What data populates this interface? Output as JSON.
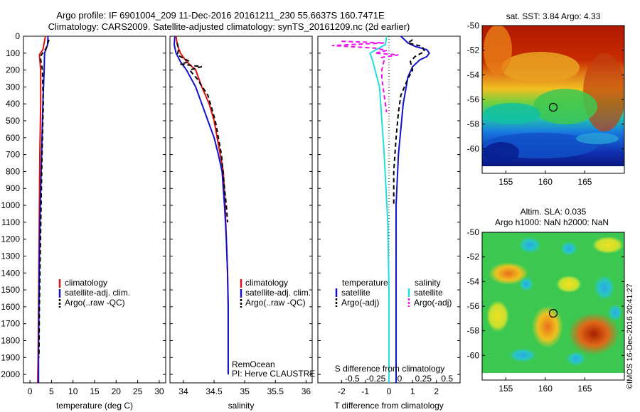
{
  "title_line1": "Argo profile: IF 6901004_209 11-Dec-2016 20161211_230 55.6637S 160.7471E",
  "title_line2": "Climatology: CARS2009. Satellite-adjusted climatology: synTS_20161209.nc (2d earlier)",
  "footer": "©IMOS 16-Dec-2016 20:41:27",
  "colors": {
    "climatology": "#dd1111",
    "satellite": "#1111cc",
    "argo": "#000000",
    "salinity_sat": "#22dddd",
    "salinity_argo": "#ee11ee"
  },
  "chart_data": [
    {
      "type": "line",
      "panel": "temperature",
      "xlabel": "temperature (deg C)",
      "xticks": [
        "0",
        "5",
        "10",
        "15",
        "20",
        "25",
        "30"
      ],
      "xlim": [
        -1.5,
        31.5
      ],
      "ylim": [
        2050,
        0
      ],
      "yticks": [
        "0",
        "100",
        "200",
        "300",
        "400",
        "500",
        "600",
        "700",
        "800",
        "900",
        "1000",
        "1100",
        "1200",
        "1300",
        "1400",
        "1500",
        "1600",
        "1700",
        "1800",
        "1900",
        "2000"
      ],
      "legend": [
        "climatology",
        "satellite-adj. clim.",
        "Argo(..raw -QC)"
      ],
      "series": [
        {
          "name": "climatology",
          "style": "solid",
          "color": "#dd1111",
          "x": [
            3.6,
            3.0,
            2.2,
            2.5,
            2.5,
            2.3,
            2.2,
            2.1,
            2.0,
            1.9,
            1.8
          ],
          "y": [
            0,
            80,
            110,
            200,
            400,
            700,
            1000,
            1300,
            1600,
            1900,
            2050
          ]
        },
        {
          "name": "satellite-adj. clim.",
          "style": "solid",
          "color": "#1111cc",
          "x": [
            4.2,
            4.1,
            3.4,
            3.3,
            3.0,
            2.7,
            2.4,
            2.2,
            2.1,
            2.0,
            2.0
          ],
          "y": [
            0,
            50,
            100,
            200,
            400,
            700,
            1000,
            1300,
            1600,
            1900,
            2050
          ]
        },
        {
          "name": "Argo(..raw -QC)",
          "style": "dashed",
          "color": "#000000",
          "x": [
            4.4,
            3.8,
            2.4,
            2.9,
            3.1,
            2.8,
            2.6,
            2.4,
            2.2,
            2.1
          ],
          "y": [
            20,
            70,
            120,
            200,
            400,
            700,
            1000,
            1300,
            1600,
            1900
          ]
        }
      ]
    },
    {
      "type": "line",
      "panel": "salinity",
      "xlabel": "salinity",
      "xticks": [
        "34",
        "34.5",
        "35",
        "35.5",
        "36"
      ],
      "xlim": [
        33.78,
        36.1
      ],
      "ylim": [
        2050,
        0
      ],
      "legend": [
        "climatology",
        "satellite-adj. clim.",
        "Argo(..raw -QC)"
      ],
      "annotation": [
        "RemOcean",
        "PI: Herve CLAUSTRE"
      ],
      "series": [
        {
          "name": "climatology",
          "style": "solid",
          "color": "#dd1111",
          "x": [
            33.88,
            33.9,
            33.95,
            34.05,
            34.2,
            34.3,
            34.42,
            34.5,
            34.55,
            34.6,
            34.65,
            34.68,
            34.7,
            34.72,
            34.73,
            34.73
          ],
          "y": [
            0,
            50,
            100,
            150,
            200,
            300,
            400,
            500,
            600,
            700,
            800,
            1000,
            1200,
            1400,
            1600,
            2000
          ]
        },
        {
          "name": "satellite-adj. clim.",
          "style": "solid",
          "color": "#1111cc",
          "x": [
            33.86,
            33.85,
            33.88,
            33.95,
            34.05,
            34.2,
            34.3,
            34.4,
            34.5,
            34.57,
            34.63,
            34.67,
            34.7,
            34.72,
            34.73,
            34.73
          ],
          "y": [
            0,
            50,
            100,
            150,
            200,
            300,
            400,
            500,
            600,
            700,
            800,
            1000,
            1200,
            1400,
            1600,
            2000
          ]
        },
        {
          "name": "Argo(..raw -QC)",
          "style": "dashed",
          "color": "#000000",
          "x": [
            33.9,
            33.92,
            33.9,
            34.1,
            33.95,
            34.3,
            34.1,
            34.22,
            34.4,
            34.52,
            34.62,
            34.67,
            34.7,
            34.72
          ],
          "y": [
            40,
            80,
            110,
            150,
            165,
            180,
            200,
            250,
            350,
            500,
            700,
            900,
            1000,
            1100
          ]
        }
      ]
    },
    {
      "type": "line",
      "panel": "difference",
      "xlabel": "T difference from climatology",
      "xlabel_top": "S difference from climatology",
      "xticks": [
        "-2",
        "-1",
        "0",
        "1",
        "2"
      ],
      "xticks_top": [
        "-0.5",
        "-0.25",
        "0",
        "0.25",
        "0.5"
      ],
      "xlim": [
        -3,
        3
      ],
      "ylim": [
        2050,
        0
      ],
      "legend_temperature": [
        "temperature",
        "satellite",
        "Argo(-adj)"
      ],
      "legend_salinity": [
        "salinity",
        "satellite",
        "Argo(-adj)"
      ],
      "series": [
        {
          "name": "T satellite",
          "style": "solid",
          "color": "#1111cc",
          "x": [
            0.5,
            0.8,
            1.1,
            1.6,
            1.7,
            1.6,
            1.3,
            1.0,
            0.8,
            0.6,
            0.4,
            0.3,
            0.3,
            0.3
          ],
          "y": [
            0,
            40,
            60,
            80,
            100,
            120,
            140,
            180,
            240,
            400,
            700,
            1000,
            1500,
            2050
          ]
        },
        {
          "name": "T Argo(-adj)",
          "style": "dashed",
          "color": "#000000",
          "x": [
            1.0,
            0.8,
            1.4,
            1.5,
            1.1,
            0.9,
            1.0,
            0.8,
            0.5,
            0.4,
            0.3,
            0.2,
            0.2
          ],
          "y": [
            20,
            40,
            60,
            90,
            120,
            150,
            200,
            250,
            350,
            450,
            600,
            800,
            1000
          ]
        },
        {
          "name": "S satellite",
          "style": "solid",
          "color": "#22dddd",
          "x": [
            -0.1,
            -0.15,
            -0.8,
            -0.7,
            -0.4,
            -0.2,
            -0.05,
            0.0,
            0.0
          ],
          "y": [
            0,
            50,
            100,
            140,
            300,
            700,
            1100,
            1500,
            2050
          ]
        },
        {
          "name": "S Argo(-adj)",
          "style": "dashed",
          "color": "#ee11ee",
          "x": [
            -2.0,
            -0.2,
            -2.4,
            -0.6,
            -0.1,
            -0.6,
            0.4,
            -0.3,
            -0.2,
            -0.3,
            -0.3,
            -0.2,
            -0.1
          ],
          "y": [
            30,
            40,
            55,
            70,
            85,
            100,
            110,
            125,
            140,
            200,
            250,
            350,
            450
          ]
        }
      ]
    }
  ],
  "maps": [
    {
      "id": "sst",
      "title": "sat. SST: 3.84 Argo: 4.33",
      "subtitle": "",
      "xticks": [
        "155",
        "160",
        "165"
      ],
      "yticks": [
        "-50",
        "-52",
        "-54",
        "-56",
        "-58",
        "-60"
      ],
      "lon_range": [
        152,
        170
      ],
      "lat_range": [
        -62,
        -50
      ],
      "float_lon": 160.7471,
      "float_lat": -55.6637
    },
    {
      "id": "sla",
      "title": "Altim. SLA: 0.035",
      "subtitle": "Argo h1000: NaN h2000: NaN",
      "xticks": [
        "155",
        "160",
        "165"
      ],
      "yticks": [
        "-50",
        "-52",
        "-54",
        "-56",
        "-58",
        "-60"
      ],
      "lon_range": [
        152,
        170
      ],
      "lat_range": [
        -62,
        -50
      ],
      "float_lon": 160.7471,
      "float_lat": -55.6637
    }
  ]
}
